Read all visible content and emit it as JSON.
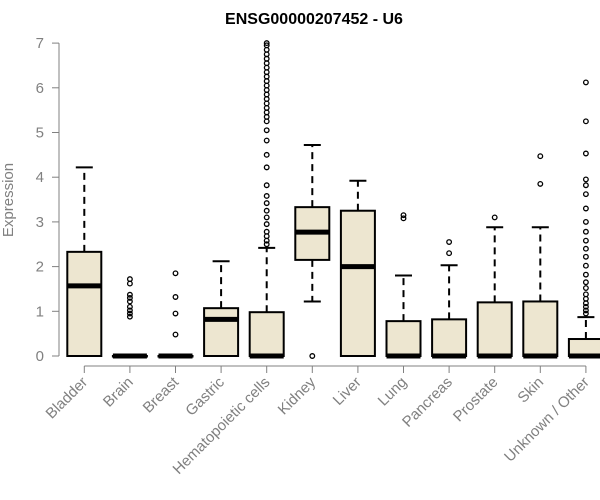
{
  "chart_data": {
    "type": "boxplot",
    "title": "ENSG00000207452 - U6",
    "xlabel": "",
    "ylabel": "Expression",
    "ylim": [
      0,
      7
    ],
    "yticks": [
      0,
      1,
      2,
      3,
      4,
      5,
      6,
      7
    ],
    "grid": false,
    "legend": "none",
    "colors": {
      "box_fill": "#ede6d0",
      "box_stroke": "#000000",
      "median": "#000000",
      "axis_text": "#808080"
    },
    "categories": [
      "Bladder",
      "Brain",
      "Breast",
      "Gastric",
      "Hematopoietic cells",
      "Kidney",
      "Liver",
      "Lung",
      "Pancreas",
      "Prostate",
      "Skin",
      "Unknown / Other"
    ],
    "boxes": [
      {
        "category": "Bladder",
        "q1": 0,
        "median": 1.57,
        "q3": 2.33,
        "whisker_low": 0,
        "whisker_high": 4.22,
        "outliers": []
      },
      {
        "category": "Brain",
        "q1": 0,
        "median": 0,
        "q3": 0,
        "whisker_low": 0,
        "whisker_high": 0,
        "outliers": [
          0.88,
          0.95,
          1.02,
          1.1,
          1.22,
          1.3,
          1.37,
          1.62,
          1.72
        ]
      },
      {
        "category": "Breast",
        "q1": 0,
        "median": 0,
        "q3": 0,
        "whisker_low": 0,
        "whisker_high": 0,
        "outliers": [
          0.48,
          0.95,
          1.32,
          1.85
        ]
      },
      {
        "category": "Gastric",
        "q1": 0,
        "median": 0.82,
        "q3": 1.07,
        "whisker_low": 0,
        "whisker_high": 2.12,
        "outliers": []
      },
      {
        "category": "Hematopoietic cells",
        "q1": 0,
        "median": 0,
        "q3": 0.98,
        "whisker_low": 0,
        "whisker_high": 2.42,
        "outliers": [
          2.5,
          2.58,
          2.68,
          2.78,
          2.95,
          3.1,
          3.25,
          3.42,
          3.58,
          3.82,
          4.22,
          4.5,
          4.82,
          5.05,
          5.25,
          5.35,
          5.45,
          5.55,
          5.65,
          5.75,
          5.85,
          5.95,
          6.05,
          6.15,
          6.25,
          6.35,
          6.45,
          6.55,
          6.65,
          6.75,
          6.85,
          6.95,
          7.0
        ]
      },
      {
        "category": "Kidney",
        "q1": 2.15,
        "median": 2.77,
        "q3": 3.33,
        "whisker_low": 1.22,
        "whisker_high": 4.72,
        "outliers": [
          0
        ]
      },
      {
        "category": "Liver",
        "q1": 0,
        "median": 2.0,
        "q3": 3.25,
        "whisker_low": 0,
        "whisker_high": 3.92,
        "outliers": []
      },
      {
        "category": "Lung",
        "q1": 0,
        "median": 0,
        "q3": 0.78,
        "whisker_low": 0,
        "whisker_high": 1.8,
        "outliers": [
          3.08,
          3.15
        ]
      },
      {
        "category": "Pancreas",
        "q1": 0,
        "median": 0,
        "q3": 0.82,
        "whisker_low": 0,
        "whisker_high": 2.03,
        "outliers": [
          2.3,
          2.55
        ]
      },
      {
        "category": "Prostate",
        "q1": 0,
        "median": 0,
        "q3": 1.2,
        "whisker_low": 0,
        "whisker_high": 2.88,
        "outliers": [
          3.1
        ]
      },
      {
        "category": "Skin",
        "q1": 0,
        "median": 0,
        "q3": 1.22,
        "whisker_low": 0,
        "whisker_high": 2.88,
        "outliers": [
          3.85,
          4.47
        ]
      },
      {
        "category": "Unknown / Other",
        "q1": 0,
        "median": 0,
        "q3": 0.38,
        "whisker_low": 0,
        "whisker_high": 0.87,
        "outliers": [
          0.95,
          1.02,
          1.1,
          1.18,
          1.28,
          1.38,
          1.52,
          1.65,
          1.82,
          2.02,
          2.22,
          2.4,
          2.58,
          2.78,
          3.0,
          3.3,
          3.62,
          3.82,
          3.95,
          4.53,
          5.25,
          6.12
        ]
      }
    ]
  }
}
